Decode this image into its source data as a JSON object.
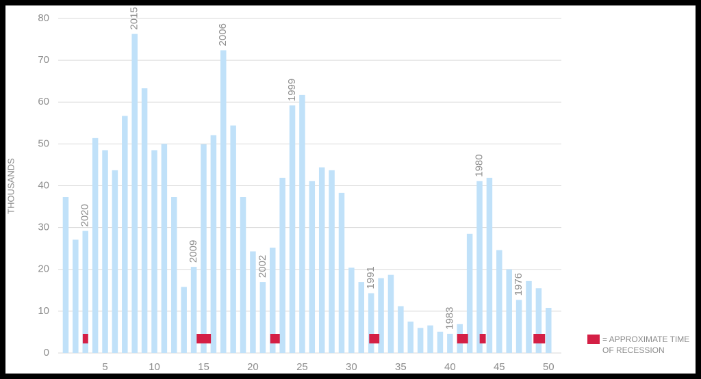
{
  "chart_data": {
    "type": "bar",
    "y_label": "THOUSANDS",
    "x": [
      1,
      2,
      3,
      4,
      5,
      6,
      7,
      8,
      9,
      10,
      11,
      12,
      13,
      14,
      15,
      16,
      17,
      18,
      19,
      20,
      21,
      22,
      23,
      24,
      25,
      26,
      27,
      28,
      29,
      30,
      31,
      32,
      33,
      34,
      35,
      36,
      37,
      38,
      39,
      40,
      41,
      42,
      43,
      44,
      45,
      46,
      47,
      48,
      49,
      50
    ],
    "values": [
      37.3,
      27.1,
      29.2,
      51.4,
      48.5,
      43.7,
      56.7,
      76.3,
      63.3,
      48.5,
      50.0,
      37.3,
      15.8,
      20.6,
      49.9,
      52.1,
      72.4,
      54.4,
      37.3,
      24.3,
      17.0,
      25.2,
      41.9,
      59.2,
      61.7,
      41.1,
      44.4,
      43.7,
      38.3,
      20.4,
      17.0,
      14.3,
      17.9,
      18.7,
      11.2,
      7.5,
      6.0,
      6.6,
      5.1,
      4.6,
      6.9,
      28.5,
      41.1,
      41.9,
      24.6,
      20.0,
      12.7,
      17.2,
      15.5,
      10.8
    ],
    "color": "#c0e1f9",
    "xlim": [
      0.24,
      51.3
    ],
    "xticks": [
      5,
      10,
      15,
      20,
      25,
      30,
      35,
      40,
      45,
      50
    ],
    "ylim": [
      0,
      80
    ],
    "yticks": [
      0,
      10,
      20,
      30,
      40,
      50,
      60,
      70,
      80
    ],
    "grid": true,
    "annotations": [
      {
        "x": 3,
        "text": "2020"
      },
      {
        "x": 8,
        "text": "2015"
      },
      {
        "x": 14,
        "text": "2009"
      },
      {
        "x": 17,
        "text": "2006"
      },
      {
        "x": 21,
        "text": "2002"
      },
      {
        "x": 24,
        "text": "1999"
      },
      {
        "x": 32,
        "text": "1991"
      },
      {
        "x": 40,
        "text": "1983"
      },
      {
        "x": 43,
        "text": "1980"
      },
      {
        "x": 47,
        "text": "1976"
      }
    ],
    "recession": {
      "color": "#d41f45",
      "label_lines": [
        "= APPROXIMATE TIME",
        "OF RECESSION"
      ],
      "spans": [
        [
          2.73,
          3.28
        ],
        [
          14.29,
          15.74
        ],
        [
          21.76,
          22.73
        ],
        [
          31.8,
          32.83
        ],
        [
          40.72,
          41.83
        ],
        [
          43.01,
          43.63
        ],
        [
          48.47,
          49.65
        ]
      ]
    }
  }
}
